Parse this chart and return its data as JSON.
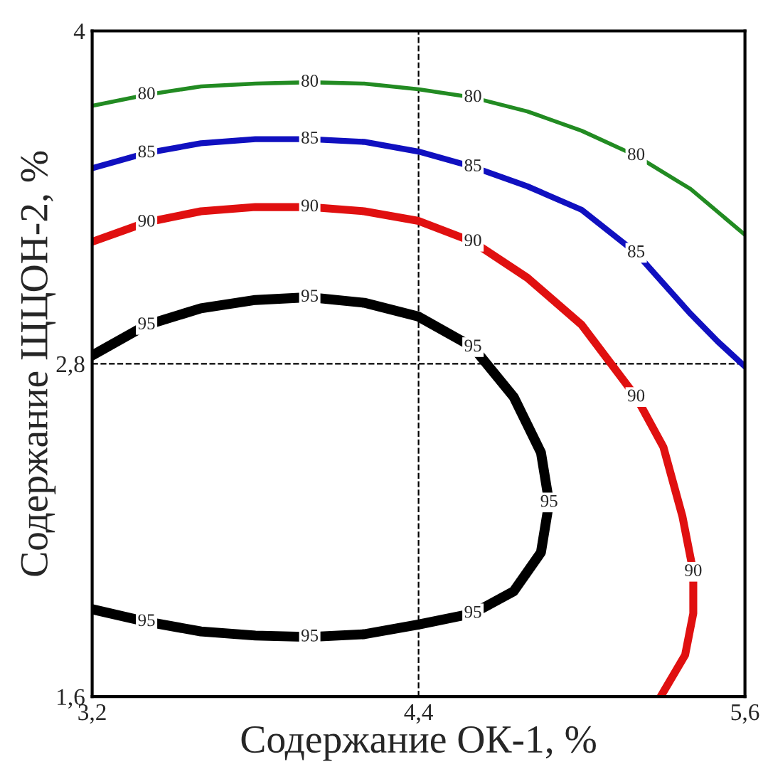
{
  "chart_data": {
    "type": "line",
    "xlabel": "Содержание ОК-1, %",
    "ylabel": "Содержание ЩЦОН-2, %",
    "xlim": [
      3.2,
      5.6
    ],
    "ylim": [
      1.6,
      4
    ],
    "xticks": [
      {
        "value": 3.2,
        "label": "3,2"
      },
      {
        "value": 4.4,
        "label": "4,4"
      },
      {
        "value": 5.6,
        "label": "5,6"
      }
    ],
    "yticks": [
      {
        "value": 1.6,
        "label": "1,6"
      },
      {
        "value": 2.8,
        "label": "2,8"
      },
      {
        "value": 4,
        "label": "4"
      }
    ],
    "grid": false,
    "legend": false,
    "marker": "none",
    "line_style": "solid",
    "ref_lines": [
      {
        "axis": "x",
        "value": 4.4,
        "color": "#000000",
        "line_style": "dashed"
      },
      {
        "axis": "y",
        "value": 2.8,
        "color": "#000000",
        "line_style": "dashed"
      }
    ],
    "series": [
      {
        "name": "80",
        "color": "#228b22",
        "x": [
          3.2,
          3.4,
          3.6,
          3.8,
          4.0,
          4.2,
          4.4,
          4.6,
          4.8,
          5.0,
          5.2,
          5.4,
          5.6
        ],
        "values": [
          3.73,
          3.77,
          3.8,
          3.81,
          3.815,
          3.81,
          3.79,
          3.76,
          3.71,
          3.64,
          3.55,
          3.43,
          3.265
        ]
      },
      {
        "name": "85",
        "color": "#1010c0",
        "x": [
          3.2,
          3.4,
          3.6,
          3.8,
          4.0,
          4.2,
          4.4,
          4.6,
          4.8,
          5.0,
          5.2,
          5.4,
          5.5,
          5.6
        ],
        "values": [
          3.505,
          3.56,
          3.595,
          3.61,
          3.61,
          3.6,
          3.565,
          3.51,
          3.44,
          3.355,
          3.2,
          2.98,
          2.88,
          2.79
        ]
      },
      {
        "name": "90",
        "color": "#e01010",
        "x": [
          3.2,
          3.4,
          3.6,
          3.8,
          4.0,
          4.2,
          4.4,
          4.6,
          4.8,
          5.0,
          5.2,
          5.3,
          5.37,
          5.41,
          5.41,
          5.38,
          5.29
        ],
        "values": [
          3.24,
          3.31,
          3.35,
          3.365,
          3.365,
          3.35,
          3.315,
          3.24,
          3.11,
          2.94,
          2.68,
          2.5,
          2.25,
          2.05,
          1.9,
          1.75,
          1.6
        ]
      },
      {
        "name": "95",
        "color": "#000000",
        "x": [
          3.2,
          3.4,
          3.6,
          3.8,
          4.0,
          4.2,
          4.4,
          4.6,
          4.75,
          4.85,
          4.88,
          4.85,
          4.75,
          4.6,
          4.4,
          4.2,
          4.0,
          3.8,
          3.6,
          3.4,
          3.2
        ],
        "values": [
          2.83,
          2.94,
          3.0,
          3.03,
          3.04,
          3.02,
          2.97,
          2.86,
          2.68,
          2.48,
          2.3,
          2.12,
          1.98,
          1.9,
          1.86,
          1.825,
          1.815,
          1.82,
          1.835,
          1.87,
          1.915
        ]
      }
    ]
  }
}
